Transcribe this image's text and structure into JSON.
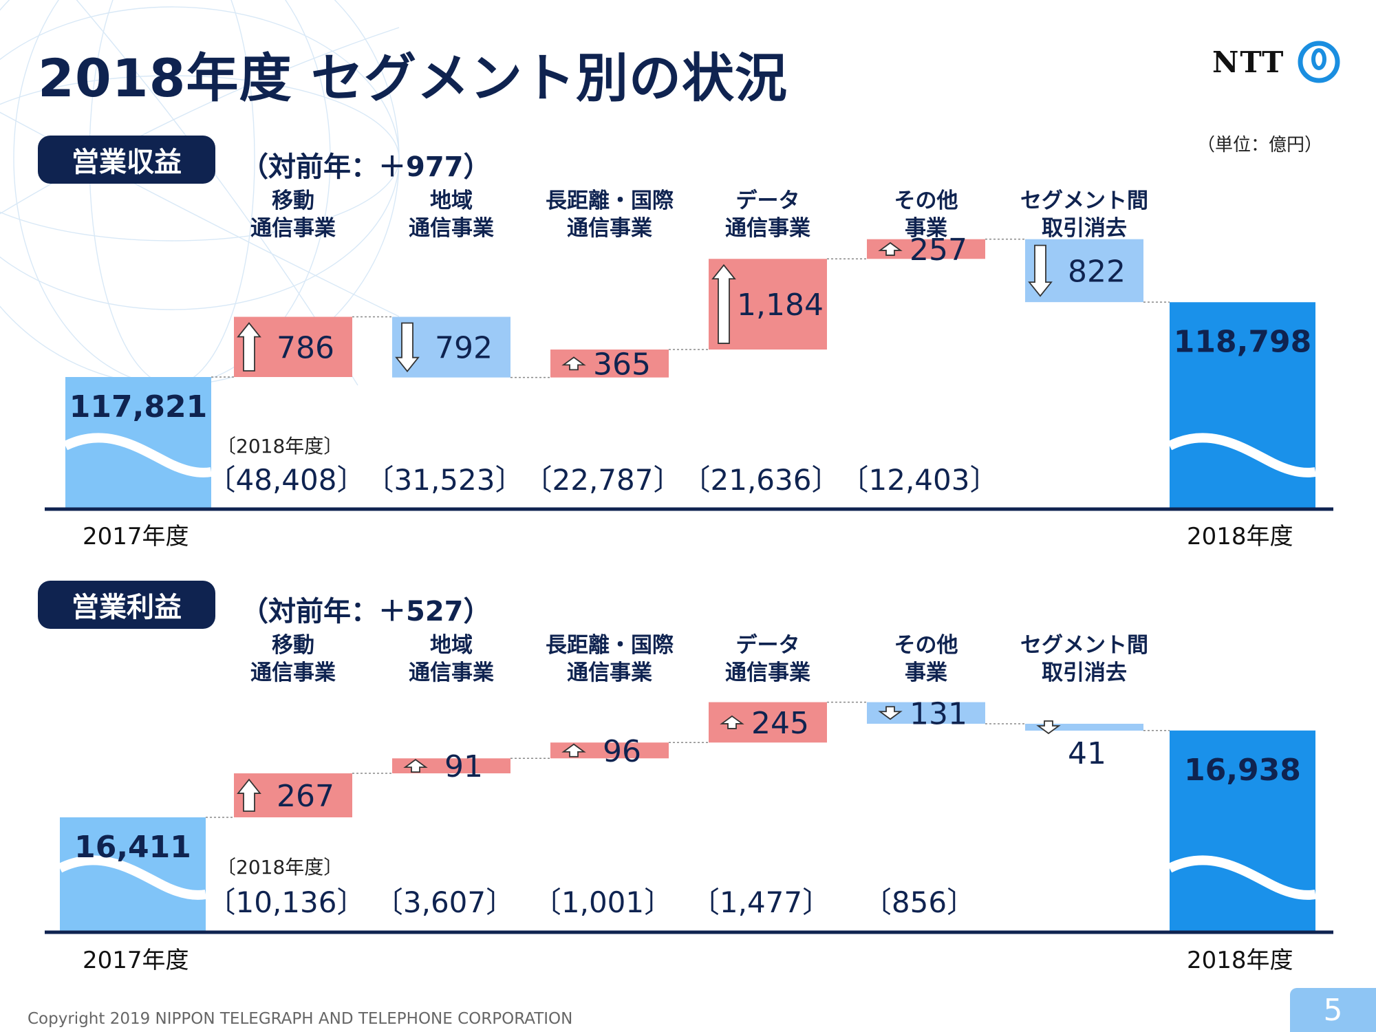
{
  "title": "2018年度 セグメント別の状況",
  "logo_text": "NTT",
  "unit_note": "（単位：億円）",
  "footer": "Copyright 2019 NIPPON TELEGRAPH AND TELEPHONE CORPORATION",
  "page_number": "5",
  "colors": {
    "increase": "#f08c8c",
    "decrease": "#9ccaf7",
    "start_bar": "#80c4f8",
    "end_bar": "#1a91ea",
    "navy": "#0f2350"
  },
  "chart_data": [
    {
      "type": "bar",
      "section_label": "営業収益",
      "yoy": "（対前年：＋977）",
      "start": {
        "label": "2017年度",
        "value": 117821,
        "value_label": "117,821"
      },
      "end": {
        "label": "2018年度",
        "value": 118798,
        "value_label": "118,798"
      },
      "steps": [
        {
          "category": "移動\n通信事業",
          "delta": 786,
          "label": "786",
          "fy2018": "〔48,408〕"
        },
        {
          "category": "地域\n通信事業",
          "delta": -792,
          "label": "792",
          "fy2018": "〔31,523〕"
        },
        {
          "category": "長距離・国際\n通信事業",
          "delta": 365,
          "label": "365",
          "fy2018": "〔22,787〕"
        },
        {
          "category": "データ\n通信事業",
          "delta": 1184,
          "label": "1,184",
          "fy2018": "〔21,636〕"
        },
        {
          "category": "その他\n事業",
          "delta": 257,
          "label": "257",
          "fy2018": "〔12,403〕"
        },
        {
          "category": "セグメント間\n取引消去",
          "delta": -822,
          "label": "822",
          "fy2018": ""
        }
      ],
      "fy2018_header": "〔2018年度〕"
    },
    {
      "type": "bar",
      "section_label": "営業利益",
      "yoy": "（対前年：＋527）",
      "start": {
        "label": "2017年度",
        "value": 16411,
        "value_label": "16,411"
      },
      "end": {
        "label": "2018年度",
        "value": 16938,
        "value_label": "16,938"
      },
      "steps": [
        {
          "category": "移動\n通信事業",
          "delta": 267,
          "label": "267",
          "fy2018": "〔10,136〕"
        },
        {
          "category": "地域\n通信事業",
          "delta": 91,
          "label": "91",
          "fy2018": "〔3,607〕"
        },
        {
          "category": "長距離・国際\n通信事業",
          "delta": 96,
          "label": "96",
          "fy2018": "〔1,001〕"
        },
        {
          "category": "データ\n通信事業",
          "delta": 245,
          "label": "245",
          "fy2018": "〔1,477〕"
        },
        {
          "category": "その他\n事業",
          "delta": -131,
          "label": "131",
          "fy2018": "〔856〕"
        },
        {
          "category": "セグメント間\n取引消去",
          "delta": -41,
          "label": "41",
          "fy2018": ""
        }
      ],
      "fy2018_header": "〔2018年度〕"
    }
  ]
}
